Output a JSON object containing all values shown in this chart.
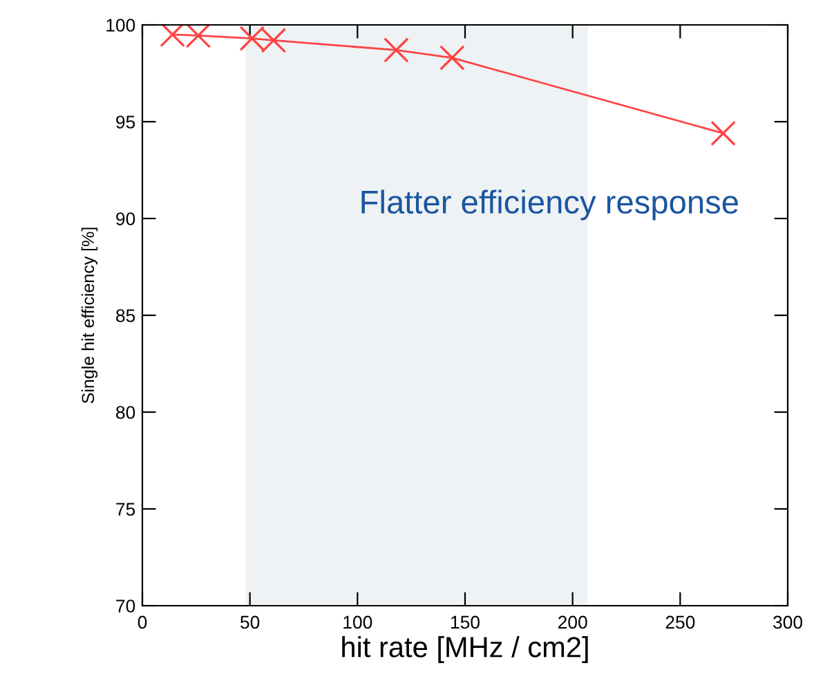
{
  "chart_data": {
    "type": "line",
    "xlabel": "hit rate [MHz / cm2]",
    "ylabel": "Single hit efficiency [%]",
    "x": [
      14,
      26,
      51,
      61,
      118,
      144,
      270
    ],
    "series": [
      {
        "color": "#ff4444",
        "values": [
          99.5,
          99.45,
          99.3,
          99.2,
          98.7,
          98.3,
          94.4
        ]
      }
    ],
    "marker": "cross",
    "line_style": "solid",
    "xlim": [
      0,
      300
    ],
    "xticks": [
      0,
      50,
      100,
      150,
      200,
      250,
      300
    ],
    "ylim": [
      70,
      100
    ],
    "yticks": [
      70,
      75,
      80,
      85,
      90,
      95,
      100
    ],
    "bands": [
      {
        "axis": "x",
        "from": 48,
        "to": 207,
        "color": "#eef2f4"
      }
    ],
    "annotations": [
      "Flatter efficiency response"
    ],
    "grid": false,
    "legend": false
  }
}
